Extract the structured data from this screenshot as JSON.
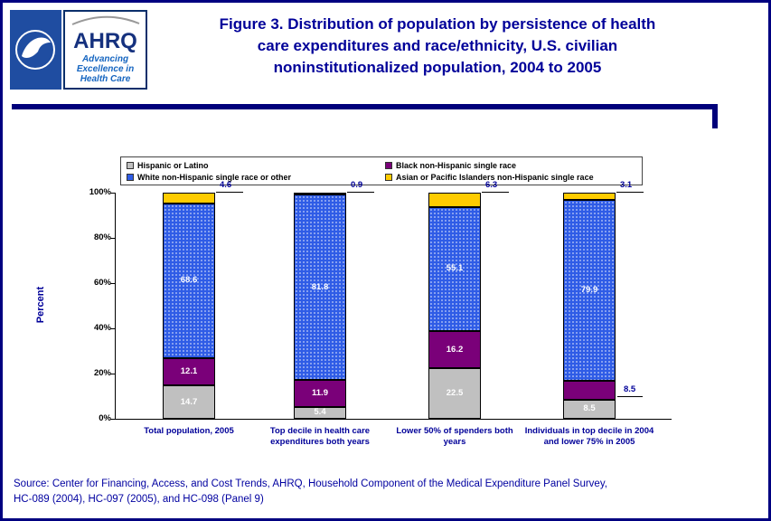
{
  "header": {
    "title_lines": {
      "0": "Figure 3. Distribution of population by persistence of health",
      "1": "care expenditures and race/ethnicity, U.S. civilian",
      "2": "noninstitutionalized population, 2004 to 2005"
    },
    "logo": {
      "ahrq": "AHRQ",
      "tagline": {
        "0": "Advancing",
        "1": "Excellence in",
        "2": "Health Care"
      }
    }
  },
  "chart_data": {
    "type": "bar",
    "stacked": true,
    "ylabel": "Percent",
    "ylim": [
      0,
      100
    ],
    "yticks": [
      "0%",
      "20%",
      "40%",
      "60%",
      "80%",
      "100%"
    ],
    "ytick_values": [
      0,
      20,
      40,
      60,
      80,
      100
    ],
    "grid": false,
    "legend_position": "top",
    "categories": [
      "Total population, 2005",
      "Top decile in health care expenditures both years",
      "Lower 50% of spenders both years",
      "Individuals in top decile in 2004 and lower 75% in 2005"
    ],
    "series": [
      {
        "name": "Hispanic or Latino",
        "color": "#c0c0c0",
        "values": [
          14.7,
          5.4,
          22.5,
          8.5
        ]
      },
      {
        "name": "Black non-Hispanic single race",
        "color": "#7a0079",
        "values": [
          12.1,
          11.9,
          16.2,
          8.5
        ]
      },
      {
        "name": "White non-Hispanic single race or other",
        "color": "#2f5ce6",
        "values": [
          68.6,
          81.8,
          55.1,
          79.9
        ]
      },
      {
        "name": "Asian or Pacific Islanders non-Hispanic single race",
        "color": "#ffcc00",
        "values": [
          4.6,
          0.9,
          6.3,
          3.1
        ]
      }
    ]
  },
  "footer": {
    "source_lines": {
      "0": "Source: Center for Financing, Access, and Cost Trends, AHRQ, Household Component of the Medical Expenditure Panel Survey,",
      "1": "HC-089 (2004), HC-097 (2005), and HC-098 (Panel 9)"
    }
  },
  "colors": {
    "title_navy": "#000099",
    "rule_navy": "#00007b",
    "footer_navy": "#0000a0"
  }
}
